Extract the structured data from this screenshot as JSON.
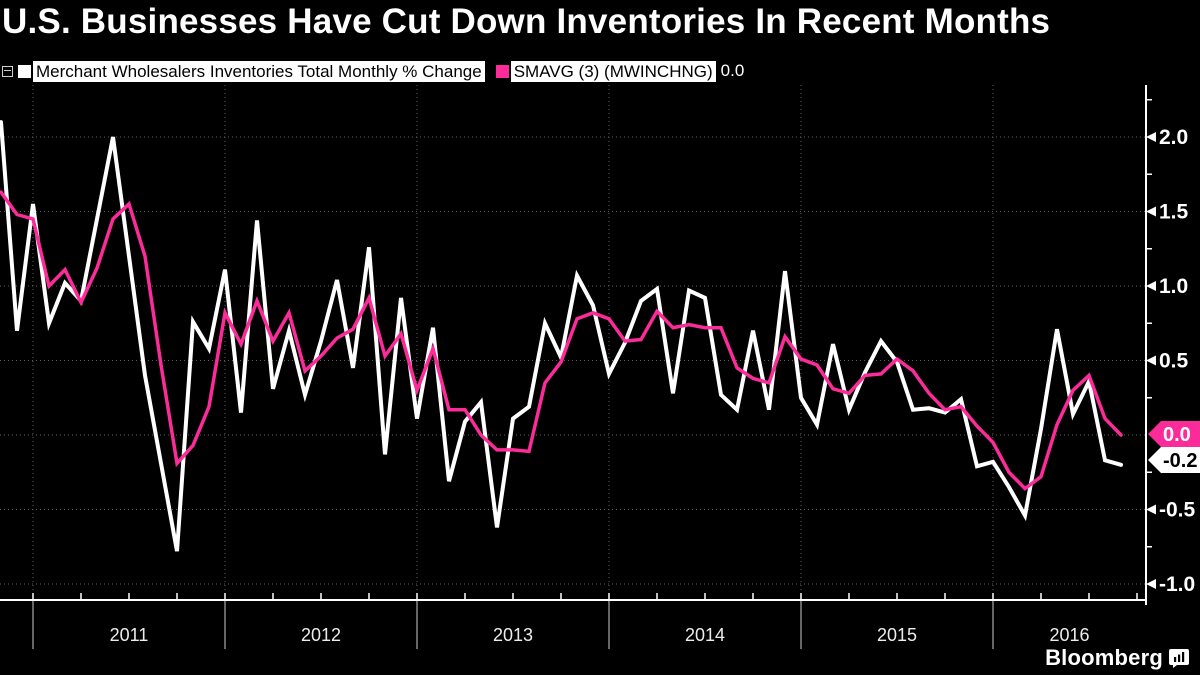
{
  "title": "U.S. Businesses Have Cut Down Inventories In Recent Months",
  "legend": {
    "items": [
      {
        "label": "Merchant Wholesalers Inventories Total Monthly % Change",
        "swatch_color": "#ffffff"
      },
      {
        "label": "SMAVG (3) (MWINCHNG)",
        "swatch_color": "#fb2b9a",
        "value": "0.0"
      }
    ]
  },
  "branding": {
    "logo_text": "Bloomberg"
  },
  "chart_data": {
    "type": "line",
    "title": "U.S. Businesses Have Cut Down Inventories In Recent Months",
    "x_start": "2010-11",
    "x_frequency": "monthly",
    "x_axis": {
      "years": [
        "2011",
        "2012",
        "2013",
        "2014",
        "2015",
        "2016"
      ],
      "minor_tick_months": 3
    },
    "y_axis": {
      "gridline_values": [
        2.0,
        1.5,
        1.0,
        0.5,
        0.0,
        -0.5,
        -1.0
      ],
      "labels": [
        {
          "value": 2.0,
          "text": "2.0"
        },
        {
          "value": 1.5,
          "text": "1.5"
        },
        {
          "value": 1.0,
          "text": "1.0"
        },
        {
          "value": 0.5,
          "text": "0.5"
        },
        {
          "value": -0.5,
          "text": "-0.5"
        },
        {
          "value": -1.0,
          "text": "-1.0"
        }
      ],
      "minor_tick_step": 0.25
    },
    "series": [
      {
        "id": "inventories",
        "name": "Merchant Wholesalers Inventories Total Monthly % Change",
        "color": "#ffffff",
        "values": [
          2.1,
          0.7,
          1.55,
          0.75,
          1.02,
          0.9,
          1.45,
          2.0,
          1.2,
          0.4,
          -0.19,
          -0.78,
          0.76,
          0.58,
          1.11,
          0.15,
          1.44,
          0.31,
          0.7,
          0.27,
          0.63,
          1.04,
          0.45,
          1.26,
          -0.13,
          0.92,
          0.11,
          0.72,
          -0.31,
          0.09,
          0.22,
          -0.62,
          0.11,
          0.19,
          0.75,
          0.52,
          1.07,
          0.87,
          0.41,
          0.62,
          0.9,
          0.98,
          0.28,
          0.97,
          0.92,
          0.27,
          0.17,
          0.7,
          0.17,
          1.1,
          0.25,
          0.07,
          0.61,
          0.17,
          0.42,
          0.63,
          0.49,
          0.17,
          0.18,
          0.15,
          0.24,
          -0.21,
          -0.18,
          -0.35,
          -0.54,
          0.04,
          0.71,
          0.14,
          0.36,
          -0.17,
          -0.2
        ]
      },
      {
        "id": "smavg",
        "name": "SMAVG (3) (MWINCHNG)",
        "color": "#fb2b9a",
        "values": [
          1.63,
          1.48,
          1.45,
          1.0,
          1.11,
          0.89,
          1.12,
          1.45,
          1.55,
          1.2,
          0.47,
          -0.19,
          -0.07,
          0.19,
          0.82,
          0.61,
          0.9,
          0.63,
          0.82,
          0.43,
          0.53,
          0.65,
          0.71,
          0.92,
          0.53,
          0.68,
          0.3,
          0.58,
          0.17,
          0.17,
          0.0,
          -0.1,
          -0.1,
          -0.11,
          0.35,
          0.49,
          0.78,
          0.82,
          0.78,
          0.63,
          0.64,
          0.83,
          0.72,
          0.74,
          0.72,
          0.72,
          0.45,
          0.38,
          0.35,
          0.66,
          0.51,
          0.47,
          0.31,
          0.28,
          0.4,
          0.41,
          0.51,
          0.43,
          0.28,
          0.17,
          0.19,
          0.06,
          -0.05,
          -0.25,
          -0.36,
          -0.28,
          0.07,
          0.3,
          0.4,
          0.11,
          0.0
        ]
      }
    ],
    "value_tags": [
      {
        "series": "smavg",
        "text": "0.0",
        "bg": "#fb2b9a",
        "fg": "#ffffff"
      },
      {
        "series": "inventories",
        "text": "-0.2",
        "bg": "#ffffff",
        "fg": "#000000"
      }
    ]
  }
}
